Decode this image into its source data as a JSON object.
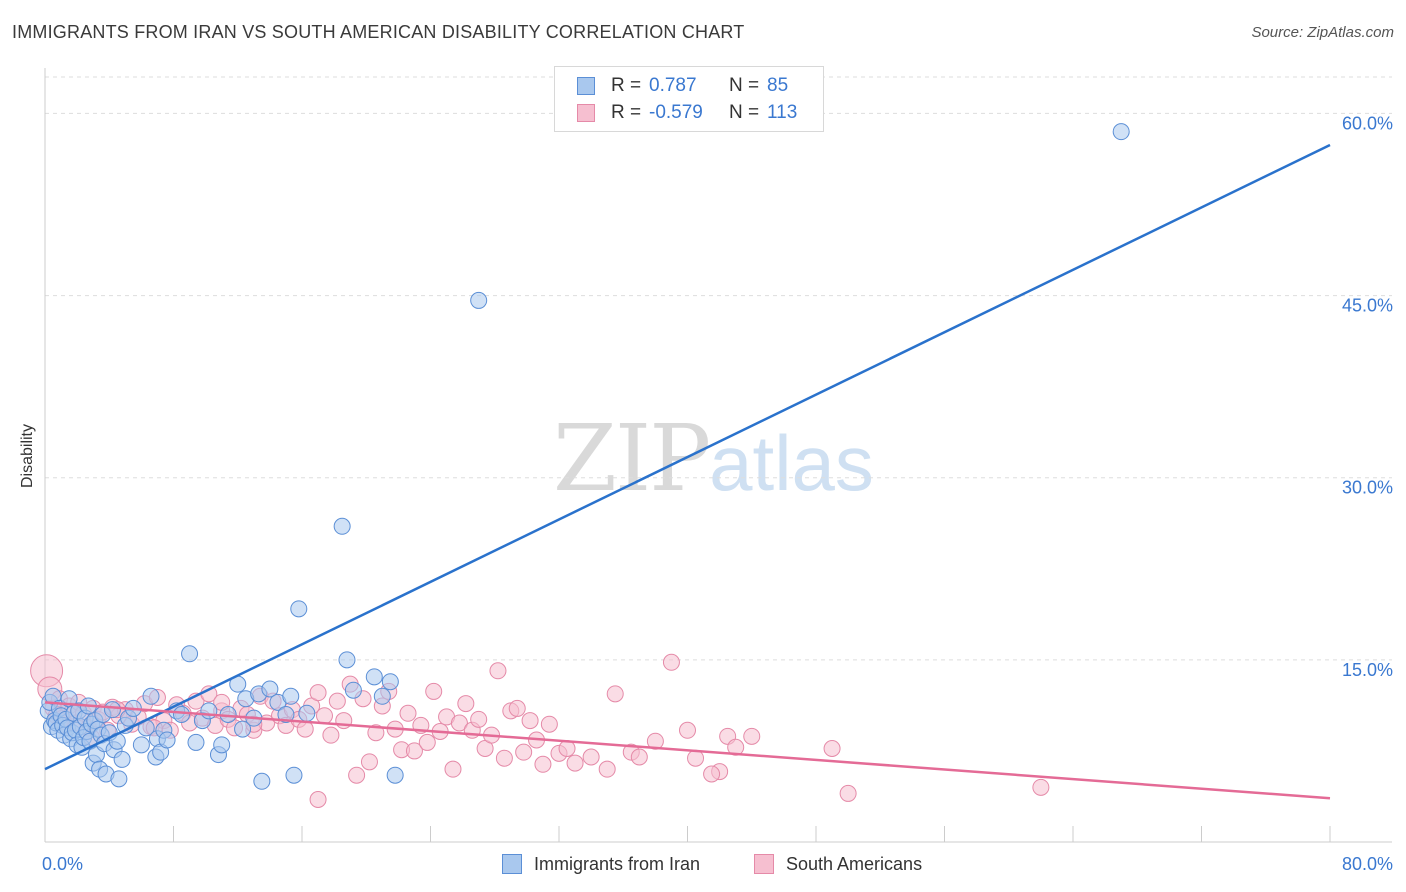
{
  "title": "IMMIGRANTS FROM IRAN VS SOUTH AMERICAN DISABILITY CORRELATION CHART",
  "source": "Source: ZipAtlas.com",
  "watermark": {
    "zip": "ZIP",
    "atlas": "atlas"
  },
  "legend": {
    "rows": [
      {
        "r_label": "R =",
        "r_value": "0.787",
        "n_label": "N =",
        "n_value": "85"
      },
      {
        "r_label": "R =",
        "r_value": "-0.579",
        "n_label": "N =",
        "n_value": "113"
      }
    ]
  },
  "bottom_legend": {
    "series1": "Immigrants from Iran",
    "series2": "South Americans"
  },
  "colors": {
    "blue_fill": "#a9c8ee",
    "blue_stroke": "#5b8fd6",
    "blue_line": "#2a72cc",
    "pink_fill": "#f6bfd0",
    "pink_stroke": "#e58aa8",
    "pink_line": "#e46b96",
    "tick_text": "#3a78d0",
    "grid": "#dddddd"
  },
  "chart_data": {
    "type": "scatter",
    "title": "IMMIGRANTS FROM IRAN VS SOUTH AMERICAN DISABILITY CORRELATION CHART",
    "xlabel": "",
    "ylabel": "Disability",
    "xlim": [
      0,
      80
    ],
    "ylim": [
      0,
      63
    ],
    "x_tick_labels": [
      "0.0%",
      "80.0%"
    ],
    "y_ticks": [
      15,
      30,
      45,
      60
    ],
    "y_tick_labels": [
      "15.0%",
      "30.0%",
      "45.0%",
      "60.0%"
    ],
    "grid": true,
    "legend_position": "top-center",
    "series": [
      {
        "name": "Immigrants from Iran",
        "r": 0.787,
        "n": 85,
        "trend": {
          "x": [
            0,
            80
          ],
          "y": [
            6.0,
            57.4
          ]
        },
        "points": [
          [
            0.2,
            10.8
          ],
          [
            0.3,
            11.5
          ],
          [
            0.4,
            9.5
          ],
          [
            0.5,
            12.0
          ],
          [
            0.6,
            10.0
          ],
          [
            0.7,
            9.8
          ],
          [
            0.8,
            9.2
          ],
          [
            0.9,
            11.0
          ],
          [
            1.0,
            10.4
          ],
          [
            1.1,
            9.6
          ],
          [
            1.2,
            8.8
          ],
          [
            1.3,
            10.1
          ],
          [
            1.4,
            9.4
          ],
          [
            1.5,
            11.8
          ],
          [
            1.6,
            8.5
          ],
          [
            1.7,
            9.0
          ],
          [
            1.8,
            10.6
          ],
          [
            1.9,
            9.2
          ],
          [
            2.0,
            8.0
          ],
          [
            2.1,
            10.8
          ],
          [
            2.2,
            9.5
          ],
          [
            2.3,
            7.8
          ],
          [
            2.4,
            8.6
          ],
          [
            2.5,
            10.2
          ],
          [
            2.6,
            9.1
          ],
          [
            2.7,
            11.2
          ],
          [
            2.8,
            8.3
          ],
          [
            2.9,
            9.7
          ],
          [
            3.0,
            6.5
          ],
          [
            3.1,
            10.0
          ],
          [
            3.2,
            7.2
          ],
          [
            3.3,
            9.3
          ],
          [
            3.4,
            6.0
          ],
          [
            3.5,
            8.8
          ],
          [
            3.6,
            10.5
          ],
          [
            3.7,
            8.1
          ],
          [
            3.8,
            5.6
          ],
          [
            4.0,
            9.0
          ],
          [
            4.2,
            10.9
          ],
          [
            4.3,
            7.6
          ],
          [
            4.5,
            8.3
          ],
          [
            4.6,
            5.2
          ],
          [
            4.8,
            6.8
          ],
          [
            5.0,
            9.6
          ],
          [
            5.2,
            10.2
          ],
          [
            5.5,
            11.0
          ],
          [
            6.0,
            8.0
          ],
          [
            6.3,
            9.4
          ],
          [
            6.6,
            12.0
          ],
          [
            6.9,
            7.0
          ],
          [
            7.0,
            8.5
          ],
          [
            7.2,
            7.4
          ],
          [
            7.4,
            9.2
          ],
          [
            7.6,
            8.4
          ],
          [
            8.2,
            10.8
          ],
          [
            8.5,
            10.5
          ],
          [
            9.0,
            15.5
          ],
          [
            9.4,
            8.2
          ],
          [
            9.8,
            10.0
          ],
          [
            10.2,
            10.8
          ],
          [
            10.8,
            7.2
          ],
          [
            11.0,
            8.0
          ],
          [
            11.4,
            10.5
          ],
          [
            12.0,
            13.0
          ],
          [
            12.3,
            9.3
          ],
          [
            12.5,
            11.8
          ],
          [
            13.0,
            10.2
          ],
          [
            13.3,
            12.2
          ],
          [
            13.5,
            5.0
          ],
          [
            14.0,
            12.6
          ],
          [
            14.5,
            11.5
          ],
          [
            15.0,
            10.5
          ],
          [
            15.3,
            12.0
          ],
          [
            15.5,
            5.5
          ],
          [
            15.8,
            19.2
          ],
          [
            16.3,
            10.6
          ],
          [
            18.5,
            26.0
          ],
          [
            18.8,
            15.0
          ],
          [
            19.2,
            12.5
          ],
          [
            20.5,
            13.6
          ],
          [
            21.0,
            12.0
          ],
          [
            21.5,
            13.2
          ],
          [
            21.8,
            5.5
          ],
          [
            27.0,
            44.6
          ],
          [
            67.0,
            58.5
          ]
        ]
      },
      {
        "name": "South Americans",
        "r": -0.579,
        "n": 113,
        "trend": {
          "x": [
            0,
            80
          ],
          "y": [
            11.5,
            3.6
          ]
        },
        "points": [
          [
            0.1,
            14.1
          ],
          [
            0.3,
            12.6
          ],
          [
            0.5,
            11.0
          ],
          [
            0.7,
            10.4
          ],
          [
            0.9,
            11.8
          ],
          [
            1.1,
            10.2
          ],
          [
            1.3,
            9.6
          ],
          [
            1.5,
            11.2
          ],
          [
            1.7,
            10.8
          ],
          [
            1.9,
            9.8
          ],
          [
            2.1,
            11.5
          ],
          [
            2.4,
            10.6
          ],
          [
            2.7,
            9.4
          ],
          [
            3.0,
            11.0
          ],
          [
            3.3,
            10.1
          ],
          [
            3.6,
            10.7
          ],
          [
            3.9,
            9.2
          ],
          [
            4.2,
            11.1
          ],
          [
            4.6,
            10.4
          ],
          [
            5.0,
            10.9
          ],
          [
            5.4,
            9.7
          ],
          [
            5.8,
            10.3
          ],
          [
            6.2,
            11.4
          ],
          [
            6.6,
            9.5
          ],
          [
            7.0,
            11.9
          ],
          [
            7.4,
            10.0
          ],
          [
            7.8,
            9.2
          ],
          [
            8.2,
            11.3
          ],
          [
            8.6,
            10.6
          ],
          [
            9.0,
            9.8
          ],
          [
            9.4,
            11.6
          ],
          [
            9.8,
            10.2
          ],
          [
            10.2,
            12.2
          ],
          [
            10.6,
            9.6
          ],
          [
            11.0,
            10.8
          ],
          [
            11.4,
            10.1
          ],
          [
            11.8,
            9.4
          ],
          [
            12.2,
            11.0
          ],
          [
            12.6,
            10.5
          ],
          [
            13.0,
            9.2
          ],
          [
            13.4,
            12.0
          ],
          [
            13.8,
            9.8
          ],
          [
            14.2,
            11.6
          ],
          [
            14.6,
            10.4
          ],
          [
            15.0,
            9.6
          ],
          [
            15.4,
            10.9
          ],
          [
            15.8,
            10.1
          ],
          [
            16.2,
            9.3
          ],
          [
            16.6,
            11.2
          ],
          [
            17.0,
            12.3
          ],
          [
            17.4,
            10.4
          ],
          [
            17.8,
            8.8
          ],
          [
            18.2,
            11.6
          ],
          [
            18.6,
            10.0
          ],
          [
            19.0,
            13.0
          ],
          [
            19.4,
            5.5
          ],
          [
            19.8,
            11.8
          ],
          [
            20.2,
            6.6
          ],
          [
            20.6,
            9.0
          ],
          [
            21.0,
            11.2
          ],
          [
            21.4,
            12.4
          ],
          [
            21.8,
            9.3
          ],
          [
            22.2,
            7.6
          ],
          [
            22.6,
            10.6
          ],
          [
            23.0,
            7.5
          ],
          [
            23.4,
            9.6
          ],
          [
            23.8,
            8.2
          ],
          [
            24.2,
            12.4
          ],
          [
            24.6,
            9.1
          ],
          [
            25.0,
            10.3
          ],
          [
            25.4,
            6.0
          ],
          [
            25.8,
            9.8
          ],
          [
            26.2,
            11.4
          ],
          [
            26.6,
            9.2
          ],
          [
            27.0,
            10.1
          ],
          [
            27.4,
            7.7
          ],
          [
            27.8,
            8.8
          ],
          [
            28.2,
            14.1
          ],
          [
            28.6,
            6.9
          ],
          [
            29.0,
            10.8
          ],
          [
            29.4,
            11.0
          ],
          [
            29.8,
            7.4
          ],
          [
            30.2,
            10.0
          ],
          [
            30.6,
            8.4
          ],
          [
            31.0,
            6.4
          ],
          [
            31.4,
            9.7
          ],
          [
            32.0,
            7.3
          ],
          [
            32.5,
            7.7
          ],
          [
            33.0,
            6.5
          ],
          [
            34.0,
            7.0
          ],
          [
            35.0,
            6.0
          ],
          [
            35.5,
            12.2
          ],
          [
            36.5,
            7.4
          ],
          [
            37.0,
            7.0
          ],
          [
            38.0,
            8.3
          ],
          [
            39.0,
            14.8
          ],
          [
            40.0,
            9.2
          ],
          [
            40.5,
            6.9
          ],
          [
            42.0,
            5.8
          ],
          [
            42.5,
            8.7
          ],
          [
            43.0,
            7.8
          ],
          [
            44.0,
            8.7
          ],
          [
            49.0,
            7.7
          ],
          [
            50.0,
            4.0
          ],
          [
            62.0,
            4.5
          ],
          [
            17.0,
            3.5
          ],
          [
            13.0,
            9.7
          ],
          [
            11.0,
            11.5
          ],
          [
            6.8,
            9.4
          ],
          [
            4.5,
            10.9
          ],
          [
            2.9,
            8.6
          ],
          [
            1.0,
            9.9
          ],
          [
            41.5,
            5.6
          ]
        ]
      }
    ]
  }
}
